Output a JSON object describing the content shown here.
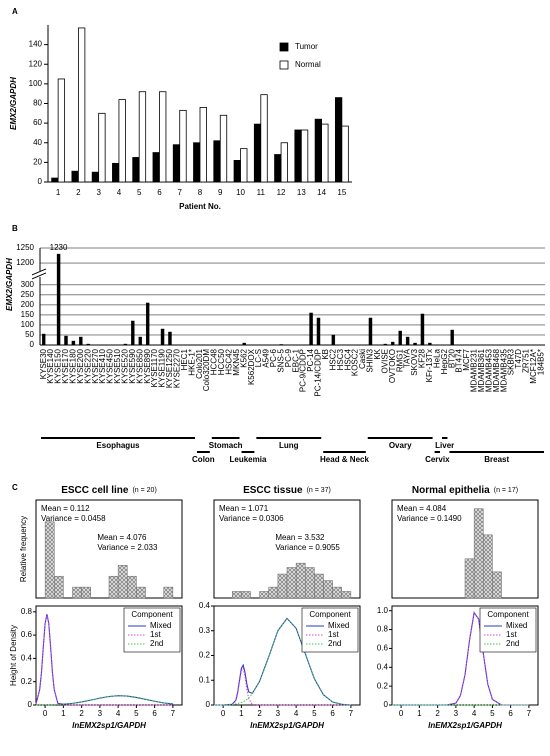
{
  "chart_data": [
    {
      "type": "bar",
      "panel": "A",
      "ylabel": "EMX2/GAPDH",
      "xlabel": "Patient No.",
      "categories": [
        "1",
        "2",
        "3",
        "4",
        "5",
        "6",
        "7",
        "8",
        "9",
        "10",
        "11",
        "12",
        "13",
        "14",
        "15"
      ],
      "series": [
        {
          "name": "Tumor",
          "color": "#000000",
          "values": [
            4,
            11,
            10,
            19,
            25,
            30,
            38,
            40,
            42,
            22,
            59,
            28,
            53,
            64,
            86
          ]
        },
        {
          "name": "Normal",
          "color": "#ffffff",
          "values": [
            105,
            157,
            70,
            84,
            92,
            92,
            73,
            76,
            68,
            34,
            89,
            40,
            53,
            59,
            57
          ]
        }
      ],
      "ylim": [
        0,
        160
      ],
      "yticks": [
        0,
        20,
        40,
        60,
        80,
        100,
        120,
        140
      ],
      "grid": false,
      "legend": "upper-right"
    },
    {
      "type": "bar",
      "panel": "B",
      "ylabel": "EMX2/GAPDH",
      "categories": [
        "KYSE30",
        "KYSE140",
        "KYSE150",
        "KYSE170",
        "KYSE180",
        "KYSE200",
        "KYSE220",
        "KYSE270",
        "KYSE410",
        "KYSE450",
        "KYSE510",
        "KYSE520",
        "KYSE590",
        "KYSE850",
        "KYSE890",
        "KYSE1170",
        "KYSE1190",
        "KYSE1250",
        "KYSE2270",
        "HEC1",
        "HKE-1*",
        "Colo201",
        "Colo320DM",
        "HCC48",
        "HCC50",
        "HSC42",
        "MKN45",
        "K562",
        "K562DOX",
        "LC-S",
        "A549",
        "PC-6",
        "SNS-5",
        "PC-9",
        "EBC-1",
        "PC-9/CDDP",
        "PC-14",
        "PC-14/CDDP",
        "KB",
        "HSC2",
        "HSC3",
        "HSC4",
        "KOSC2",
        "Caski",
        "SHIN3",
        "KK",
        "OVISE",
        "OVTOKO",
        "RMG1",
        "TAYA",
        "SKOV3",
        "KF28",
        "KFr-13Tx",
        "HeLa",
        "HepG2",
        "BT20",
        "BT474",
        "MCF7",
        "MDAMB231",
        "MDAMB361",
        "MDAMB453",
        "MDAMB468",
        "MDAMB435",
        "SKBR3",
        "T47D",
        "ZR751",
        "MCF12A*",
        "184B5*"
      ],
      "values": [
        55,
        0,
        1230,
        45,
        20,
        40,
        5,
        0,
        0,
        0,
        0,
        5,
        120,
        40,
        210,
        0,
        80,
        65,
        0,
        0,
        0,
        0,
        0,
        0,
        0,
        0,
        0,
        10,
        0,
        0,
        0,
        0,
        3,
        0,
        0,
        0,
        160,
        135,
        0,
        50,
        0,
        0,
        0,
        0,
        135,
        0,
        5,
        15,
        70,
        40,
        10,
        155,
        10,
        0,
        0,
        75,
        0,
        0,
        0,
        0,
        0,
        0,
        0,
        0,
        0,
        0,
        0,
        0
      ],
      "color": "#000000",
      "ylim": [
        0,
        1250
      ],
      "yticks": [
        0,
        50,
        100,
        150,
        200,
        250,
        300,
        1200,
        1250
      ],
      "y_break": [
        300,
        1200
      ],
      "grid": true,
      "groups": [
        {
          "name": "Esophagus",
          "count": 21
        },
        {
          "name": "Colon",
          "count": 2
        },
        {
          "name": "Stomach",
          "count": 4
        },
        {
          "name": "Leukemia",
          "count": 2
        },
        {
          "name": "Lung",
          "count": 9
        },
        {
          "name": "Head & Neck",
          "count": 6
        },
        {
          "name": "Ovary",
          "count": 9
        },
        {
          "name": "Cervix",
          "count": 1
        },
        {
          "name": "Liver",
          "count": 1
        },
        {
          "name": "Breast",
          "count": 13
        }
      ]
    },
    {
      "type": "histogram",
      "panel": "C",
      "title": "ESCC cell line",
      "subtitle": "(n = 20)",
      "ylabel": "Relative frequency",
      "bins": [
        0,
        0.5,
        1,
        1.5,
        2,
        2.5,
        3,
        3.5,
        4,
        4.5,
        5,
        5.5,
        6,
        6.5,
        7
      ],
      "values": [
        0.35,
        0.1,
        0,
        0.05,
        0.05,
        0,
        0,
        0.1,
        0.15,
        0.1,
        0.05,
        0,
        0,
        0.05
      ],
      "color": "#d4d4d4",
      "xlim": [
        -0.5,
        7.5
      ],
      "ylim": [
        0,
        0.45
      ],
      "annotations": [
        [
          "Mean = 0.112",
          "Variance = 0.0458"
        ],
        [
          "Mean = 4.076",
          "Variance = 2.033"
        ]
      ]
    },
    {
      "type": "line",
      "ylabel": "Height of Density",
      "xlabel": "lnEMX2sp1/GAPDH",
      "legend_title": "Component",
      "x": [
        -0.5,
        -0.3,
        -0.2,
        -0.1,
        0,
        0.1,
        0.2,
        0.3,
        0.4,
        0.5,
        0.7,
        1,
        1.5,
        2,
        2.5,
        3,
        3.5,
        4,
        4.5,
        5,
        5.5,
        6,
        6.5,
        7
      ],
      "series": [
        {
          "name": "Mixed",
          "color": "#2b3bc0",
          "style": "solid",
          "values": [
            0.01,
            0.13,
            0.28,
            0.5,
            0.7,
            0.78,
            0.7,
            0.5,
            0.28,
            0.13,
            0.014,
            0.007,
            0.014,
            0.026,
            0.042,
            0.059,
            0.073,
            0.08,
            0.077,
            0.065,
            0.049,
            0.032,
            0.018,
            0.009
          ]
        },
        {
          "name": "1st",
          "color": "#e040e0",
          "style": "dotted",
          "values": [
            0.01,
            0.13,
            0.28,
            0.5,
            0.7,
            0.78,
            0.7,
            0.5,
            0.28,
            0.13,
            0.01,
            0,
            0,
            0,
            0,
            0,
            0,
            0,
            0,
            0,
            0,
            0,
            0,
            0
          ]
        },
        {
          "name": "2nd",
          "color": "#3cc84a",
          "style": "dotted",
          "values": [
            0,
            0.001,
            0.001,
            0.001,
            0.001,
            0.001,
            0.001,
            0.001,
            0.002,
            0.002,
            0.004,
            0.007,
            0.014,
            0.026,
            0.042,
            0.059,
            0.073,
            0.08,
            0.077,
            0.065,
            0.049,
            0.032,
            0.018,
            0.009
          ]
        }
      ],
      "xlim": [
        -0.5,
        7.5
      ],
      "xticks": [
        0,
        1,
        2,
        3,
        4,
        5,
        6,
        7
      ],
      "ylim": [
        0,
        0.85
      ],
      "yticks": [
        0,
        0.2,
        0.4,
        0.6,
        0.8
      ]
    },
    {
      "type": "histogram",
      "title": "ESCC tissue",
      "subtitle": "(n = 37)",
      "bins": [
        0,
        0.5,
        1,
        1.5,
        2,
        2.5,
        3,
        3.5,
        4,
        4.5,
        5,
        5.5,
        6,
        6.5,
        7
      ],
      "values": [
        0,
        0.03,
        0.03,
        0,
        0.03,
        0.05,
        0.11,
        0.14,
        0.16,
        0.14,
        0.11,
        0.08,
        0.05,
        0.03
      ],
      "color": "#d4d4d4",
      "xlim": [
        -0.5,
        7.5
      ],
      "ylim": [
        0,
        0.45
      ],
      "annotations": [
        [
          "Mean = 1.071",
          "Variance = 0.0306"
        ],
        [
          "Mean = 3.532",
          "Variance = 0.9055"
        ]
      ]
    },
    {
      "type": "line",
      "xlabel": "lnEMX2sp1/GAPDH",
      "legend_title": "Component",
      "x": [
        -0.5,
        0,
        0.5,
        0.7,
        0.8,
        0.9,
        1,
        1.1,
        1.2,
        1.3,
        1.4,
        1.6,
        2,
        2.5,
        3,
        3.5,
        4,
        4.5,
        5,
        5.5,
        6,
        6.5,
        7
      ],
      "series": [
        {
          "name": "Mixed",
          "color": "#2b3bc0",
          "style": "solid",
          "values": [
            0,
            0,
            0.003,
            0.02,
            0.052,
            0.102,
            0.148,
            0.161,
            0.131,
            0.085,
            0.053,
            0.047,
            0.096,
            0.195,
            0.3,
            0.35,
            0.31,
            0.208,
            0.106,
            0.041,
            0.012,
            0.003,
            0
          ]
        },
        {
          "name": "1st",
          "color": "#e040e0",
          "style": "dotted",
          "values": [
            0,
            0,
            0.001,
            0.016,
            0.046,
            0.094,
            0.138,
            0.148,
            0.114,
            0.063,
            0.025,
            0.002,
            0,
            0,
            0,
            0,
            0,
            0,
            0,
            0,
            0,
            0,
            0
          ]
        },
        {
          "name": "2nd",
          "color": "#3cc84a",
          "style": "dotted",
          "values": [
            0,
            0,
            0.002,
            0.004,
            0.006,
            0.008,
            0.01,
            0.013,
            0.017,
            0.022,
            0.028,
            0.045,
            0.096,
            0.195,
            0.3,
            0.35,
            0.31,
            0.208,
            0.106,
            0.041,
            0.012,
            0.003,
            0
          ]
        }
      ],
      "xlim": [
        -0.5,
        7.5
      ],
      "xticks": [
        0,
        1,
        2,
        3,
        4,
        5,
        6,
        7
      ],
      "ylim": [
        0,
        0.4
      ],
      "yticks": [
        0,
        0.1,
        0.2,
        0.3,
        0.4
      ]
    },
    {
      "type": "histogram",
      "title": "Normal epithelia",
      "subtitle": "(n = 17)",
      "bins": [
        0,
        0.5,
        1,
        1.5,
        2,
        2.5,
        3,
        3.5,
        4,
        4.5,
        5,
        5.5,
        6,
        6.5,
        7
      ],
      "values": [
        0,
        0,
        0,
        0,
        0,
        0,
        0,
        0.18,
        0.41,
        0.29,
        0.12,
        0,
        0,
        0
      ],
      "color": "#d4d4d4",
      "xlim": [
        -0.5,
        7.5
      ],
      "ylim": [
        0,
        0.45
      ],
      "annotations": [
        [
          "Mean = 4.084",
          "Variance = 0.1490"
        ]
      ]
    },
    {
      "type": "line",
      "xlabel": "lnEMX2sp1/GAPDH",
      "legend_title": "Component",
      "x": [
        -0.5,
        0,
        1,
        2,
        2.5,
        3,
        3.25,
        3.5,
        3.75,
        4,
        4.25,
        4.5,
        4.75,
        5,
        5.5,
        6,
        7
      ],
      "series": [
        {
          "name": "Mixed",
          "color": "#2b3bc0",
          "style": "solid",
          "values": [
            0,
            0,
            0,
            0,
            0,
            0.02,
            0.1,
            0.32,
            0.69,
            0.98,
            0.91,
            0.55,
            0.22,
            0.06,
            0,
            0,
            0
          ]
        },
        {
          "name": "1st",
          "color": "#e040e0",
          "style": "dotted",
          "values": [
            0,
            0,
            0,
            0,
            0,
            0.02,
            0.1,
            0.32,
            0.69,
            0.98,
            0.91,
            0.55,
            0.22,
            0.06,
            0,
            0,
            0
          ]
        },
        {
          "name": "2nd",
          "color": "#3cc84a",
          "style": "dotted",
          "values": [
            0,
            0,
            0,
            0,
            0,
            0,
            0,
            0,
            0,
            0,
            0,
            0,
            0,
            0,
            0,
            0,
            0
          ]
        }
      ],
      "xlim": [
        -0.5,
        7.5
      ],
      "xticks": [
        0,
        1,
        2,
        3,
        4,
        5,
        6,
        7
      ],
      "ylim": [
        0,
        1.05
      ],
      "yticks": [
        0,
        0.2,
        0.4,
        0.6,
        0.8,
        {
          "value": 1,
          "label": "1.0"
        }
      ]
    }
  ]
}
